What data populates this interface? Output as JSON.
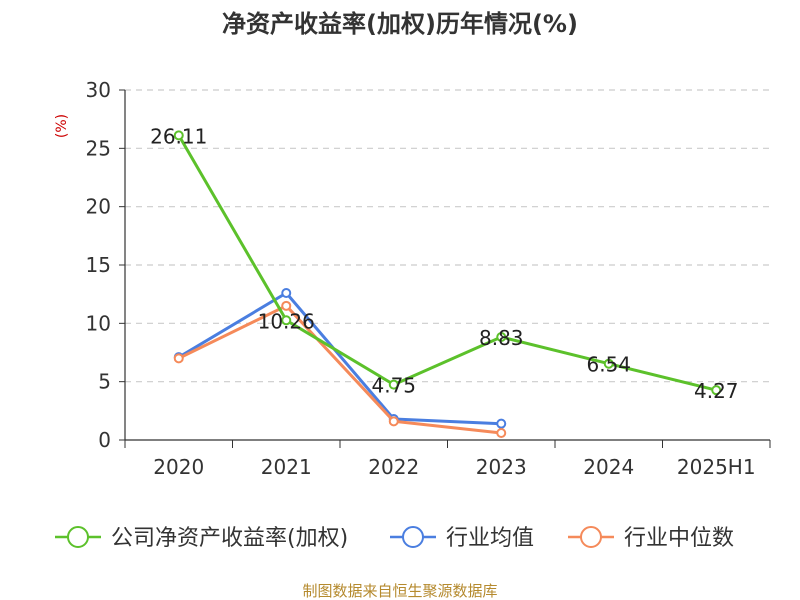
{
  "chart_data": {
    "type": "line",
    "title": "净资产收益率(加权)历年情况(%)",
    "ylabel": "(%)",
    "categories": [
      "2020",
      "2021",
      "2022",
      "2023",
      "2024",
      "2025H1"
    ],
    "ylim": [
      0,
      30
    ],
    "yticks": [
      0,
      5,
      10,
      15,
      20,
      25,
      30
    ],
    "grid": true,
    "legend_position": "bottom",
    "series": [
      {
        "name": "公司净资产收益率(加权)",
        "color": "#5cc12b",
        "values": [
          26.11,
          10.26,
          4.75,
          8.83,
          6.54,
          4.27
        ],
        "labels": [
          "26.11",
          "10.26",
          "4.75",
          "8.83",
          "6.54",
          "4.27"
        ]
      },
      {
        "name": "行业均值",
        "color": "#4a7ee0",
        "values": [
          7.1,
          12.6,
          1.8,
          1.4,
          null,
          null
        ]
      },
      {
        "name": "行业中位数",
        "color": "#f58a5a",
        "values": [
          7.0,
          11.5,
          1.6,
          0.6,
          null,
          null
        ]
      }
    ]
  },
  "source": "制图数据来自恒生聚源数据库"
}
